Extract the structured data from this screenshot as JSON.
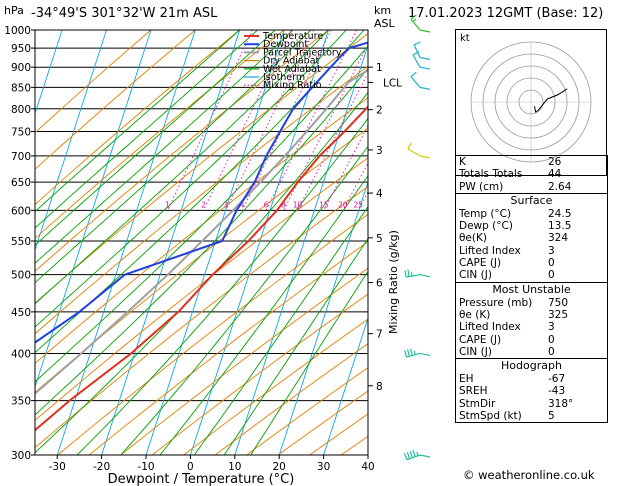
{
  "header": {
    "location": "-34°49'S  301°32'W  21m  ASL",
    "datetime": "17.01.2023  12GMT  (Base: 12)",
    "hpa_label": "hPa",
    "km_label": "km",
    "asl_label": "ASL"
  },
  "chart_data": {
    "type": "skew-t",
    "xlabel": "Dewpoint / Temperature (°C)",
    "ylabel_right": "Mixing Ratio (g/kg)",
    "x_ticks": [
      -30,
      -20,
      -10,
      0,
      10,
      20,
      30,
      40
    ],
    "xlim": [
      -35,
      40
    ],
    "pressure_levels": [
      300,
      350,
      400,
      450,
      500,
      550,
      600,
      650,
      700,
      750,
      800,
      850,
      900,
      950,
      1000
    ],
    "ylim_hpa": [
      1000,
      300
    ],
    "km_ticks": [
      {
        "label": "8",
        "p": 365
      },
      {
        "label": "7",
        "p": 423
      },
      {
        "label": "6",
        "p": 489
      },
      {
        "label": "5",
        "p": 555
      },
      {
        "label": "4",
        "p": 630
      },
      {
        "label": "3",
        "p": 712
      },
      {
        "label": "2",
        "p": 798
      },
      {
        "label": "LCL",
        "p": 862
      },
      {
        "label": "1",
        "p": 900
      }
    ],
    "mixing_ratio_labels": [
      "1",
      "2",
      "3",
      "4",
      "6",
      "8",
      "10",
      "15",
      "20",
      "25"
    ],
    "mixing_ratio_values": [
      1,
      2,
      3,
      4,
      6,
      8,
      10,
      15,
      20,
      25
    ],
    "legend": [
      "Temperature",
      "Dewpoint",
      "Parcel Trajectory",
      "Dry Adiabat",
      "Wet Adiabat",
      "Isotherm",
      "Mixing Ratio"
    ],
    "colors": {
      "temperature": "#e03020",
      "dewpoint": "#2040e0",
      "parcel": "#a0a0a0",
      "dry_adiabat": "#e08000",
      "wet_adiabat": "#00a000",
      "isotherm": "#10a8e0",
      "mixing_ratio": "#e010a0"
    },
    "temperature_profile": [
      [
        1000,
        24.5
      ],
      [
        970,
        24.2
      ],
      [
        950,
        23.5
      ],
      [
        925,
        22.0
      ],
      [
        900,
        20.6
      ],
      [
        850,
        17.5
      ],
      [
        800,
        14.2
      ],
      [
        750,
        11.0
      ],
      [
        700,
        7.2
      ],
      [
        650,
        4.2
      ],
      [
        600,
        1.6
      ],
      [
        550,
        -2.6
      ],
      [
        500,
        -8.2
      ],
      [
        450,
        -13.2
      ],
      [
        400,
        -20.8
      ],
      [
        350,
        -31.2
      ],
      [
        300,
        -41.5
      ]
    ],
    "dewpoint_profile": [
      [
        1000,
        13.5
      ],
      [
        970,
        11.0
      ],
      [
        950,
        6.0
      ],
      [
        925,
        4.5
      ],
      [
        900,
        3.2
      ],
      [
        850,
        0.5
      ],
      [
        800,
        -2.2
      ],
      [
        750,
        -3.5
      ],
      [
        700,
        -4.8
      ],
      [
        650,
        -5.5
      ],
      [
        600,
        -7.5
      ],
      [
        550,
        -8.5
      ],
      [
        500,
        -28.0
      ],
      [
        450,
        -35.5
      ],
      [
        400,
        -46.0
      ],
      [
        350,
        -59.0
      ],
      [
        300,
        -64.5
      ]
    ],
    "parcel_profile": [
      [
        1000,
        24.5
      ],
      [
        950,
        18.6
      ],
      [
        900,
        12.7
      ],
      [
        862,
        8.3
      ],
      [
        800,
        5.3
      ],
      [
        750,
        2.5
      ],
      [
        700,
        -0.6
      ],
      [
        650,
        -4.2
      ],
      [
        600,
        -8.3
      ],
      [
        550,
        -13.0
      ],
      [
        500,
        -18.3
      ],
      [
        450,
        -24.6
      ],
      [
        400,
        -32.0
      ],
      [
        350,
        -40.8
      ],
      [
        300,
        -51.0
      ]
    ],
    "wind_barbs": [
      {
        "p": 300,
        "dir": 250,
        "kt": 35
      },
      {
        "p": 400,
        "dir": 255,
        "kt": 25
      },
      {
        "p": 500,
        "dir": 260,
        "kt": 15
      },
      {
        "p": 700,
        "dir": 300,
        "kt": 10
      },
      {
        "p": 850,
        "dir": 320,
        "kt": 10
      },
      {
        "p": 900,
        "dir": 330,
        "kt": 10
      },
      {
        "p": 925,
        "dir": 335,
        "kt": 10
      },
      {
        "p": 1000,
        "dir": 320,
        "kt": 5
      }
    ]
  },
  "hodograph": {
    "label": "kt"
  },
  "indices": {
    "rows": [
      {
        "label": "K",
        "value": "26"
      },
      {
        "label": "Totals Totals",
        "value": "44"
      },
      {
        "label": "PW (cm)",
        "value": "2.64"
      }
    ]
  },
  "surface": {
    "title": "Surface",
    "rows": [
      {
        "label": "Temp (°C)",
        "value": "24.5"
      },
      {
        "label": "Dewp (°C)",
        "value": "13.5"
      },
      {
        "label": "θe(K)",
        "value": "324"
      },
      {
        "label": "Lifted Index",
        "value": "3"
      },
      {
        "label": "CAPE (J)",
        "value": "0"
      },
      {
        "label": "CIN (J)",
        "value": "0"
      }
    ]
  },
  "most_unstable": {
    "title": "Most Unstable",
    "rows": [
      {
        "label": "Pressure (mb)",
        "value": "750"
      },
      {
        "label": "θe (K)",
        "value": "325"
      },
      {
        "label": "Lifted Index",
        "value": "3"
      },
      {
        "label": "CAPE (J)",
        "value": "0"
      },
      {
        "label": "CIN (J)",
        "value": "0"
      }
    ]
  },
  "hodograph_table": {
    "title": "Hodograph",
    "rows": [
      {
        "label": "EH",
        "value": "-67"
      },
      {
        "label": "SREH",
        "value": "-43"
      },
      {
        "label": "StmDir",
        "value": "318°"
      },
      {
        "label": "StmSpd (kt)",
        "value": "5"
      }
    ]
  },
  "footer": {
    "copyright": "© weatheronline.co.uk"
  }
}
